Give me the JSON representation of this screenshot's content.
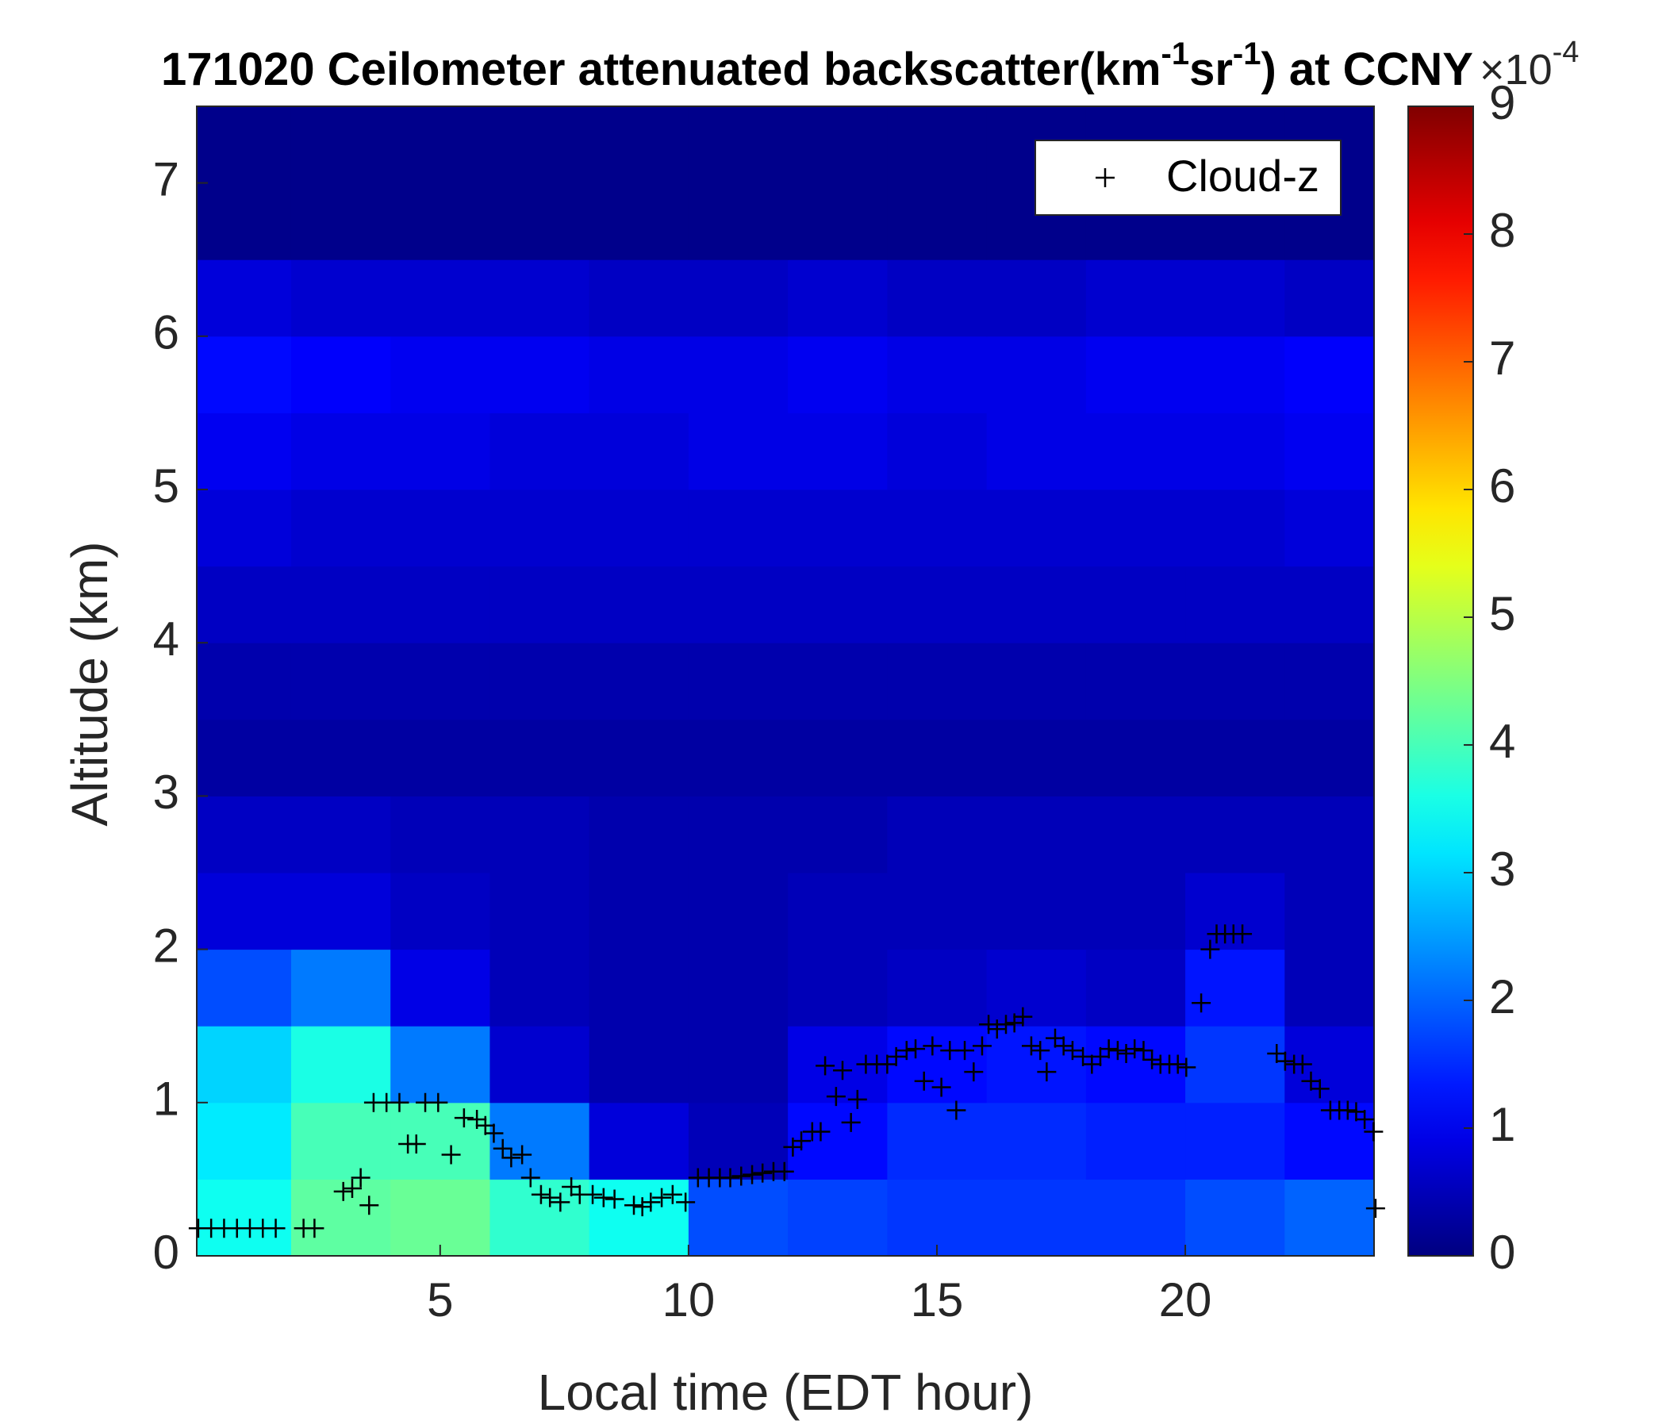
{
  "chart_data": {
    "type": "heatmap",
    "title": [
      "171020 Ceilometer attenuated backscatter(km",
      "-1",
      "sr",
      "-1",
      ") at CCNY"
    ],
    "x_label": "Local time (EDT hour)",
    "y_label": "Altitude (km)",
    "xlim": [
      0.1,
      23.8
    ],
    "ylim": [
      0,
      7.5
    ],
    "xticks": [
      5,
      10,
      15,
      20
    ],
    "yticks": [
      0,
      1,
      2,
      3,
      4,
      5,
      6,
      7
    ],
    "colormap": "jet",
    "clim": [
      0,
      9
    ],
    "cticks": [
      0,
      1,
      2,
      3,
      4,
      5,
      6,
      7,
      8,
      9
    ],
    "colorbar_label": [
      "×10",
      "-4"
    ],
    "x_edges": [
      0.1,
      2,
      4,
      6,
      8,
      10,
      12,
      14,
      16,
      18,
      20,
      22,
      23.8
    ],
    "y_edges": [
      0,
      0.5,
      1,
      1.5,
      2,
      2.5,
      3,
      3.5,
      4,
      4.5,
      5,
      5.5,
      6,
      6.5,
      7,
      7.5
    ],
    "z": [
      [
        3.5,
        4.2,
        4.3,
        3.8,
        3.5,
        1.8,
        1.7,
        1.6,
        1.6,
        1.6,
        1.8,
        2.0
      ],
      [
        3.2,
        4.0,
        4.0,
        2.2,
        0.8,
        0.5,
        1.2,
        1.5,
        1.5,
        1.4,
        1.4,
        1.2
      ],
      [
        3.0,
        3.6,
        2.2,
        0.7,
        0.4,
        0.4,
        0.9,
        1.2,
        1.3,
        1.2,
        1.6,
        0.8
      ],
      [
        1.8,
        2.2,
        0.9,
        0.5,
        0.4,
        0.4,
        0.5,
        0.6,
        0.7,
        0.6,
        1.3,
        0.5
      ],
      [
        0.8,
        0.8,
        0.6,
        0.5,
        0.4,
        0.4,
        0.5,
        0.5,
        0.5,
        0.5,
        0.7,
        0.5
      ],
      [
        0.6,
        0.6,
        0.5,
        0.5,
        0.4,
        0.4,
        0.4,
        0.5,
        0.5,
        0.5,
        0.5,
        0.5
      ],
      [
        0.3,
        0.3,
        0.3,
        0.3,
        0.3,
        0.3,
        0.3,
        0.3,
        0.3,
        0.3,
        0.3,
        0.3
      ],
      [
        0.4,
        0.4,
        0.4,
        0.4,
        0.4,
        0.4,
        0.4,
        0.4,
        0.4,
        0.4,
        0.4,
        0.4
      ],
      [
        0.6,
        0.6,
        0.6,
        0.6,
        0.6,
        0.6,
        0.6,
        0.6,
        0.6,
        0.6,
        0.6,
        0.6
      ],
      [
        0.8,
        0.7,
        0.7,
        0.7,
        0.7,
        0.7,
        0.7,
        0.7,
        0.7,
        0.7,
        0.7,
        0.8
      ],
      [
        1.0,
        0.9,
        0.9,
        0.8,
        0.8,
        0.9,
        0.9,
        0.8,
        0.9,
        0.9,
        0.9,
        1.0
      ],
      [
        1.2,
        1.1,
        1.0,
        1.0,
        0.9,
        0.9,
        1.0,
        0.9,
        0.9,
        1.0,
        1.0,
        1.1
      ],
      [
        0.8,
        0.7,
        0.7,
        0.7,
        0.6,
        0.6,
        0.7,
        0.6,
        0.6,
        0.7,
        0.7,
        0.6
      ],
      [
        0.1,
        0.1,
        0.1,
        0.1,
        0.1,
        0.1,
        0.1,
        0.1,
        0.1,
        0.1,
        0.1,
        0.1
      ],
      [
        0.1,
        0.1,
        0.1,
        0.1,
        0.1,
        0.1,
        0.1,
        0.1,
        0.1,
        0.1,
        0.1,
        0.1
      ]
    ],
    "legend": "northeast",
    "series": [
      {
        "name": "Cloud-z",
        "color": "#000000",
        "marker": "+",
        "x": [
          0.13,
          0.39,
          0.65,
          0.91,
          1.17,
          1.43,
          1.69,
          2.25,
          2.47,
          3.05,
          3.23,
          3.4,
          3.57,
          3.66,
          3.92,
          4.18,
          4.7,
          4.96,
          4.35,
          4.52,
          5.22,
          5.48,
          5.74,
          5.91,
          6.08,
          6.26,
          6.43,
          6.65,
          6.82,
          7.03,
          7.21,
          7.42,
          7.64,
          7.81,
          8.07,
          8.29,
          8.51,
          8.9,
          9.07,
          9.24,
          9.46,
          9.68,
          9.94,
          10.19,
          10.41,
          10.63,
          10.84,
          11.06,
          11.28,
          11.49,
          11.71,
          11.93,
          12.1,
          12.27,
          12.49,
          12.66,
          12.75,
          12.97,
          13.1,
          13.27,
          13.4,
          13.57,
          13.79,
          14.0,
          14.18,
          14.39,
          14.57,
          14.74,
          14.91,
          15.09,
          15.26,
          15.39,
          15.56,
          15.74,
          15.91,
          16.04,
          16.21,
          16.39,
          16.56,
          16.73,
          16.9,
          17.08,
          17.21,
          17.38,
          17.55,
          17.73,
          17.94,
          18.12,
          18.29,
          18.46,
          18.64,
          18.81,
          18.98,
          19.16,
          19.33,
          19.5,
          19.68,
          19.85,
          20.02,
          20.32,
          20.5,
          20.63,
          20.8,
          20.97,
          21.15,
          21.84,
          22.01,
          22.19,
          22.36,
          22.53,
          22.71,
          22.92,
          23.1,
          23.27,
          23.44,
          23.61,
          23.79,
          23.83
        ],
        "y": [
          0.18,
          0.18,
          0.18,
          0.18,
          0.18,
          0.18,
          0.18,
          0.18,
          0.18,
          0.42,
          0.44,
          0.51,
          0.33,
          1.0,
          1.0,
          1.0,
          1.0,
          1.0,
          0.73,
          0.73,
          0.66,
          0.9,
          0.89,
          0.85,
          0.8,
          0.7,
          0.64,
          0.66,
          0.51,
          0.4,
          0.38,
          0.35,
          0.45,
          0.4,
          0.4,
          0.38,
          0.37,
          0.33,
          0.32,
          0.35,
          0.38,
          0.4,
          0.35,
          0.51,
          0.51,
          0.51,
          0.51,
          0.52,
          0.53,
          0.54,
          0.55,
          0.55,
          0.71,
          0.75,
          0.81,
          0.81,
          1.24,
          1.04,
          1.21,
          0.87,
          1.02,
          1.25,
          1.25,
          1.25,
          1.3,
          1.34,
          1.35,
          1.14,
          1.37,
          1.1,
          1.34,
          0.95,
          1.34,
          1.2,
          1.37,
          1.51,
          1.48,
          1.51,
          1.52,
          1.56,
          1.37,
          1.34,
          1.2,
          1.42,
          1.37,
          1.34,
          1.3,
          1.25,
          1.3,
          1.35,
          1.34,
          1.32,
          1.35,
          1.34,
          1.28,
          1.25,
          1.25,
          1.25,
          1.23,
          1.65,
          2.0,
          2.1,
          2.1,
          2.1,
          2.1,
          1.32,
          1.27,
          1.25,
          1.25,
          1.14,
          1.09,
          0.95,
          0.95,
          0.95,
          0.94,
          0.89,
          0.81,
          0.31
        ]
      }
    ]
  }
}
